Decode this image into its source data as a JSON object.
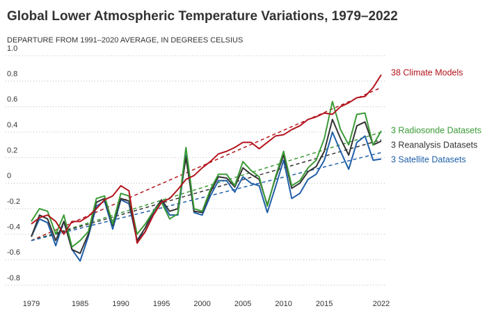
{
  "chart_data": {
    "type": "line",
    "title": "Global Lower Atmospheric Temperature Variations, 1979–2022",
    "subtitle": "DEPARTURE FROM 1991–2020 AVERAGE, IN DEGREES CELSIUS",
    "x": [
      1979,
      1980,
      1981,
      1982,
      1983,
      1984,
      1985,
      1986,
      1987,
      1988,
      1989,
      1990,
      1991,
      1992,
      1993,
      1994,
      1995,
      1996,
      1997,
      1998,
      1999,
      2000,
      2001,
      2002,
      2003,
      2004,
      2005,
      2006,
      2007,
      2008,
      2009,
      2010,
      2011,
      2012,
      2013,
      2014,
      2015,
      2016,
      2017,
      2018,
      2019,
      2020,
      2021,
      2022
    ],
    "xlim": [
      1979,
      2022
    ],
    "xticks": [
      1979,
      1985,
      1990,
      1995,
      2000,
      2005,
      2010,
      2015,
      2022
    ],
    "ylim": [
      -0.8,
      1.0
    ],
    "yticks": [
      -0.8,
      -0.6,
      -0.4,
      -0.2,
      0,
      0.2,
      0.4,
      0.6,
      0.8,
      {
        "value": 1.0,
        "label": "1.0"
      }
    ],
    "grid": true,
    "series": [
      {
        "name": "38 Climate Models",
        "color": "#b3141d",
        "trend": [
          -0.45,
          0.75
        ],
        "values": [
          -0.32,
          -0.27,
          -0.25,
          -0.3,
          -0.4,
          -0.3,
          -0.3,
          -0.26,
          -0.2,
          -0.13,
          -0.1,
          -0.02,
          -0.06,
          -0.47,
          -0.38,
          -0.25,
          -0.15,
          -0.12,
          -0.05,
          0.03,
          0.06,
          0.12,
          0.17,
          0.23,
          0.25,
          0.28,
          0.32,
          0.32,
          0.27,
          0.32,
          0.37,
          0.38,
          0.42,
          0.45,
          0.5,
          0.52,
          0.55,
          0.54,
          0.6,
          0.63,
          0.67,
          0.68,
          0.75,
          0.85
        ]
      },
      {
        "name": "3 Radiosonde Datasets",
        "color": "#3a9a35",
        "trend": [
          -0.45,
          0.4
        ],
        "values": [
          -0.3,
          -0.2,
          -0.22,
          -0.4,
          -0.25,
          -0.5,
          -0.45,
          -0.38,
          -0.12,
          -0.1,
          -0.32,
          -0.08,
          -0.1,
          -0.4,
          -0.32,
          -0.22,
          -0.15,
          -0.28,
          -0.24,
          0.28,
          -0.2,
          -0.22,
          -0.05,
          0.07,
          0.07,
          -0.02,
          0.17,
          0.1,
          0.05,
          -0.18,
          0.05,
          0.25,
          -0.02,
          0.02,
          0.12,
          0.18,
          0.35,
          0.64,
          0.42,
          0.3,
          0.54,
          0.55,
          0.3,
          0.41
        ]
      },
      {
        "name": "3 Reanalysis Datasets",
        "color": "#333333",
        "trend": [
          -0.45,
          0.34
        ],
        "values": [
          -0.42,
          -0.25,
          -0.28,
          -0.45,
          -0.3,
          -0.52,
          -0.55,
          -0.4,
          -0.15,
          -0.12,
          -0.33,
          -0.12,
          -0.14,
          -0.45,
          -0.35,
          -0.22,
          -0.13,
          -0.22,
          -0.2,
          0.2,
          -0.22,
          -0.23,
          -0.07,
          0.05,
          0.04,
          -0.03,
          0.12,
          0.07,
          0.03,
          -0.17,
          0.04,
          0.22,
          -0.04,
          0.0,
          0.09,
          0.13,
          0.25,
          0.5,
          0.35,
          0.22,
          0.45,
          0.48,
          0.3,
          0.33
        ]
      },
      {
        "name": "3 Satellite Datasets",
        "color": "#1f5fa8",
        "trend": [
          -0.45,
          0.24
        ],
        "values": [
          -0.42,
          -0.28,
          -0.31,
          -0.49,
          -0.3,
          -0.52,
          -0.61,
          -0.42,
          -0.18,
          -0.14,
          -0.36,
          -0.13,
          -0.16,
          -0.45,
          -0.38,
          -0.24,
          -0.14,
          -0.25,
          -0.25,
          0.22,
          -0.23,
          -0.25,
          -0.1,
          0.02,
          0.02,
          -0.07,
          0.05,
          0.0,
          -0.02,
          -0.23,
          -0.03,
          0.18,
          -0.12,
          -0.08,
          0.03,
          0.07,
          0.18,
          0.4,
          0.25,
          0.11,
          0.32,
          0.37,
          0.18,
          0.19
        ]
      }
    ]
  }
}
